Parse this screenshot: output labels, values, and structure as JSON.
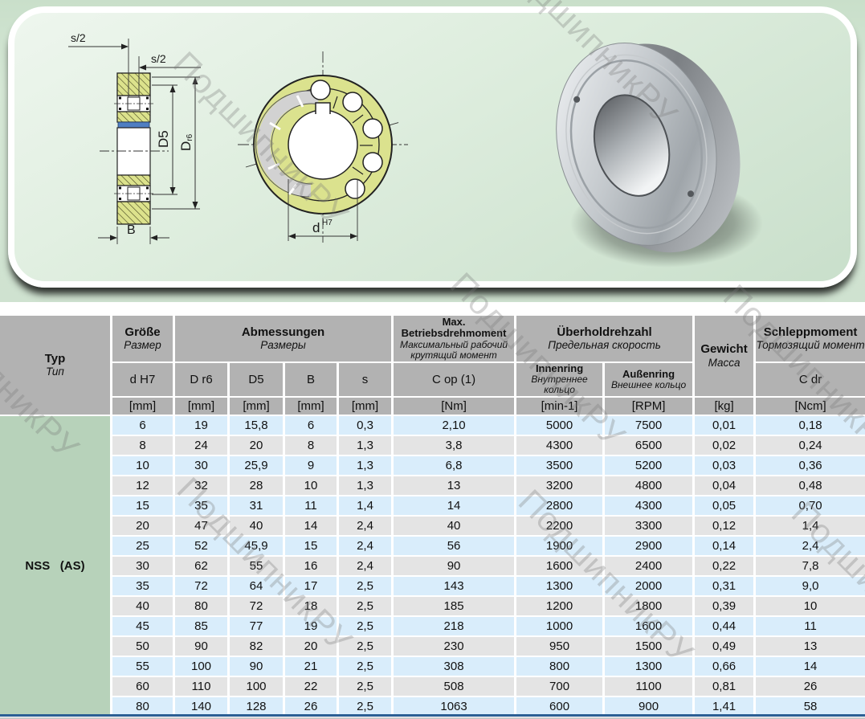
{
  "watermark": {
    "text": "ПодшипникРУ"
  },
  "diagram": {
    "labels": {
      "s_half_top": "s/2",
      "s_half_mid": "s/2",
      "d5": "D5",
      "d_outer_main": "D",
      "d_outer_sub": "r6",
      "width_b": "B",
      "bore_d": "d",
      "bore_tol": "H7"
    }
  },
  "table": {
    "header": {
      "typ": {
        "de": "Typ",
        "ru": "Тип"
      },
      "groesse": {
        "de": "Größe",
        "ru": "Размер",
        "sub": "d H7",
        "unit": "[mm]"
      },
      "abmessungen": {
        "de": "Abmessungen",
        "ru": "Размеры",
        "subs": [
          "D r6",
          "D5",
          "B",
          "s"
        ],
        "units": [
          "[mm]",
          "[mm]",
          "[mm]",
          "[mm]"
        ]
      },
      "max_moment": {
        "de": "Max. Betriebsdrehmoment",
        "ru": "Максимальный рабочий крутящий момент",
        "sub": "C op (1)",
        "unit": "[Nm]"
      },
      "ueberholdrehzahl": {
        "de": "Überholdrehzahl",
        "ru": "Предельная скорость",
        "inner": {
          "de": "Innenring",
          "ru": "Внутреннее кольцо",
          "unit": "[min-1]"
        },
        "outer": {
          "de": "Außenring",
          "ru": "Внешнее кольцо",
          "unit": "[RPM]"
        }
      },
      "gewicht": {
        "de": "Gewicht",
        "ru": "Масса",
        "unit": "[kg]"
      },
      "schleppmoment": {
        "de": "Schleppmoment",
        "ru": "Тормозящий момент",
        "sub": "C dr",
        "unit": "[Ncm]"
      }
    },
    "type_label": "NSS   (AS)",
    "rows": [
      [
        "6",
        "19",
        "15,8",
        "6",
        "0,3",
        "2,10",
        "5000",
        "7500",
        "0,01",
        "0,18"
      ],
      [
        "8",
        "24",
        "20",
        "8",
        "1,3",
        "3,8",
        "4300",
        "6500",
        "0,02",
        "0,24"
      ],
      [
        "10",
        "30",
        "25,9",
        "9",
        "1,3",
        "6,8",
        "3500",
        "5200",
        "0,03",
        "0,36"
      ],
      [
        "12",
        "32",
        "28",
        "10",
        "1,3",
        "13",
        "3200",
        "4800",
        "0,04",
        "0,48"
      ],
      [
        "15",
        "35",
        "31",
        "11",
        "1,4",
        "14",
        "2800",
        "4300",
        "0,05",
        "0,70"
      ],
      [
        "20",
        "47",
        "40",
        "14",
        "2,4",
        "40",
        "2200",
        "3300",
        "0,12",
        "1,4"
      ],
      [
        "25",
        "52",
        "45,9",
        "15",
        "2,4",
        "56",
        "1900",
        "2900",
        "0,14",
        "2,4"
      ],
      [
        "30",
        "62",
        "55",
        "16",
        "2,4",
        "90",
        "1600",
        "2400",
        "0,22",
        "7,8"
      ],
      [
        "35",
        "72",
        "64",
        "17",
        "2,5",
        "143",
        "1300",
        "2000",
        "0,31",
        "9,0"
      ],
      [
        "40",
        "80",
        "72",
        "18",
        "2,5",
        "185",
        "1200",
        "1800",
        "0,39",
        "10"
      ],
      [
        "45",
        "85",
        "77",
        "19",
        "2,5",
        "218",
        "1000",
        "1600",
        "0,44",
        "11"
      ],
      [
        "50",
        "90",
        "82",
        "20",
        "2,5",
        "230",
        "950",
        "1500",
        "0,49",
        "13"
      ],
      [
        "55",
        "100",
        "90",
        "21",
        "2,5",
        "308",
        "800",
        "1300",
        "0,66",
        "14"
      ],
      [
        "60",
        "110",
        "100",
        "22",
        "2,5",
        "508",
        "700",
        "1100",
        "0,81",
        "26"
      ],
      [
        "80",
        "140",
        "128",
        "26",
        "2,5",
        "1063",
        "600",
        "900",
        "1,41",
        "58"
      ]
    ]
  },
  "colors": {
    "header_gray": "#b2b2b2",
    "row_blue": "#d9edfb",
    "row_gray": "#e4e4e4",
    "typ_green": "#b7d2ba",
    "bottom_line_blue": "#2b5f94",
    "panel_green": "#d5e7d5",
    "drawing_fill": "#dce28c",
    "drawing_blue_band": "#4f7ec2"
  }
}
